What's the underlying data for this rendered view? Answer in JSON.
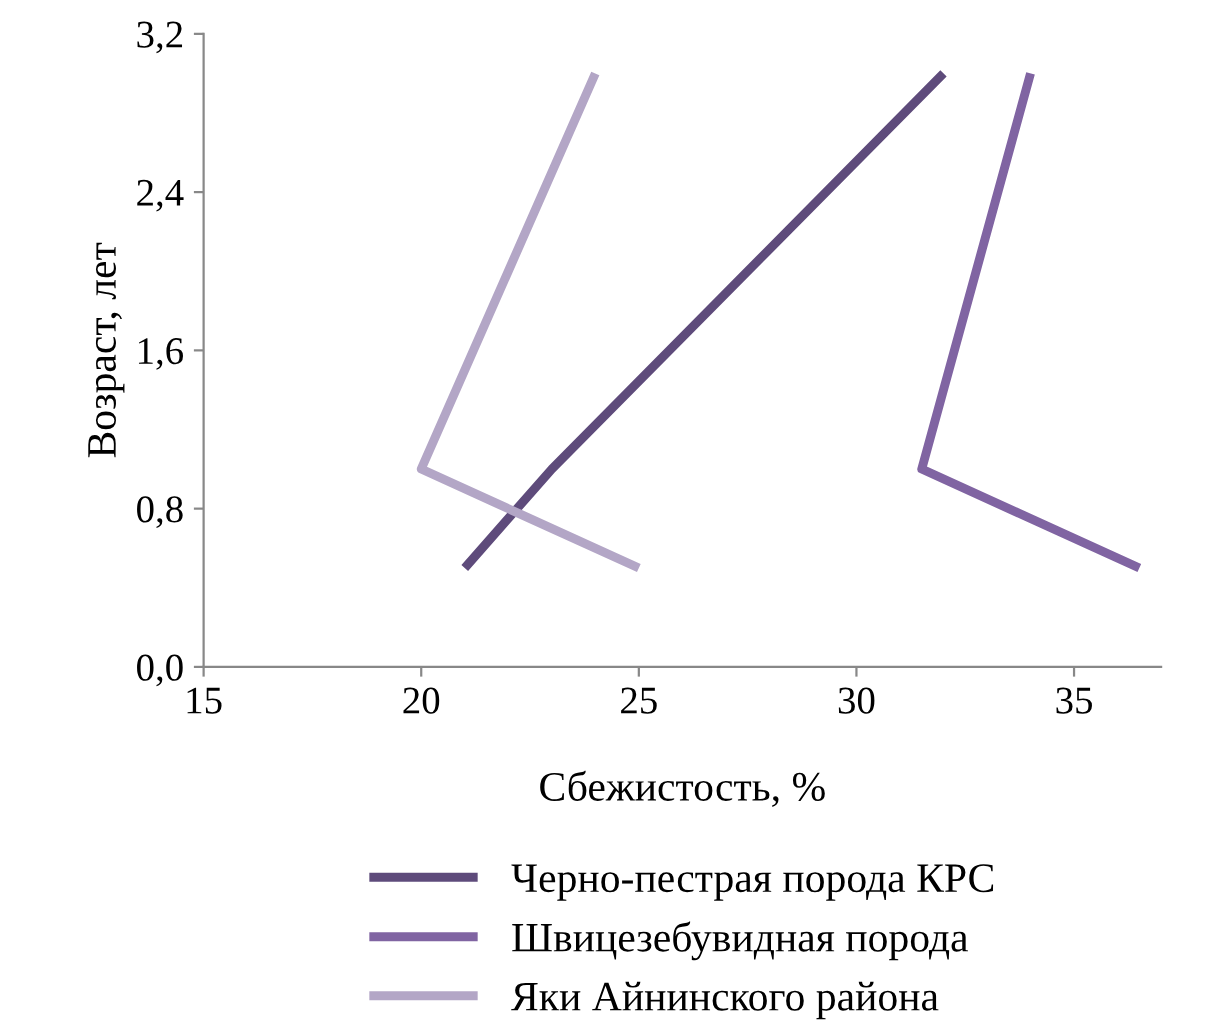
{
  "chart_data": {
    "type": "line",
    "xlabel": "Сбежистость, %",
    "ylabel": "Возраст, лет",
    "xlim": [
      15,
      37
    ],
    "xticks": [
      15,
      20,
      25,
      30,
      35
    ],
    "ylim": [
      0,
      3.2
    ],
    "yticks": [
      {
        "value": 0,
        "label": "0,0"
      },
      {
        "value": 0.8,
        "label": "0,8"
      },
      {
        "value": 1.6,
        "label": "1,6"
      },
      {
        "value": 2.4,
        "label": "2,4"
      },
      {
        "value": 3.2,
        "label": "3,2"
      }
    ],
    "grid": false,
    "legend": "bottom",
    "marker": "none",
    "line_style": "solid",
    "series": [
      {
        "name": "Черно-пестрая порода КРС",
        "color": "#5e4b7b",
        "x": [
          21,
          23,
          32
        ],
        "values": [
          0.5,
          1.0,
          3.0
        ]
      },
      {
        "name": "Швицезебувидная порода",
        "color": "#8064a2",
        "x": [
          36.5,
          31.5,
          34
        ],
        "values": [
          0.5,
          1.0,
          3.0
        ]
      },
      {
        "name": "Яки Айнинского района",
        "color": "#b3a6c6",
        "x": [
          25,
          20,
          24
        ],
        "values": [
          0.5,
          1.0,
          3.0
        ]
      }
    ]
  }
}
